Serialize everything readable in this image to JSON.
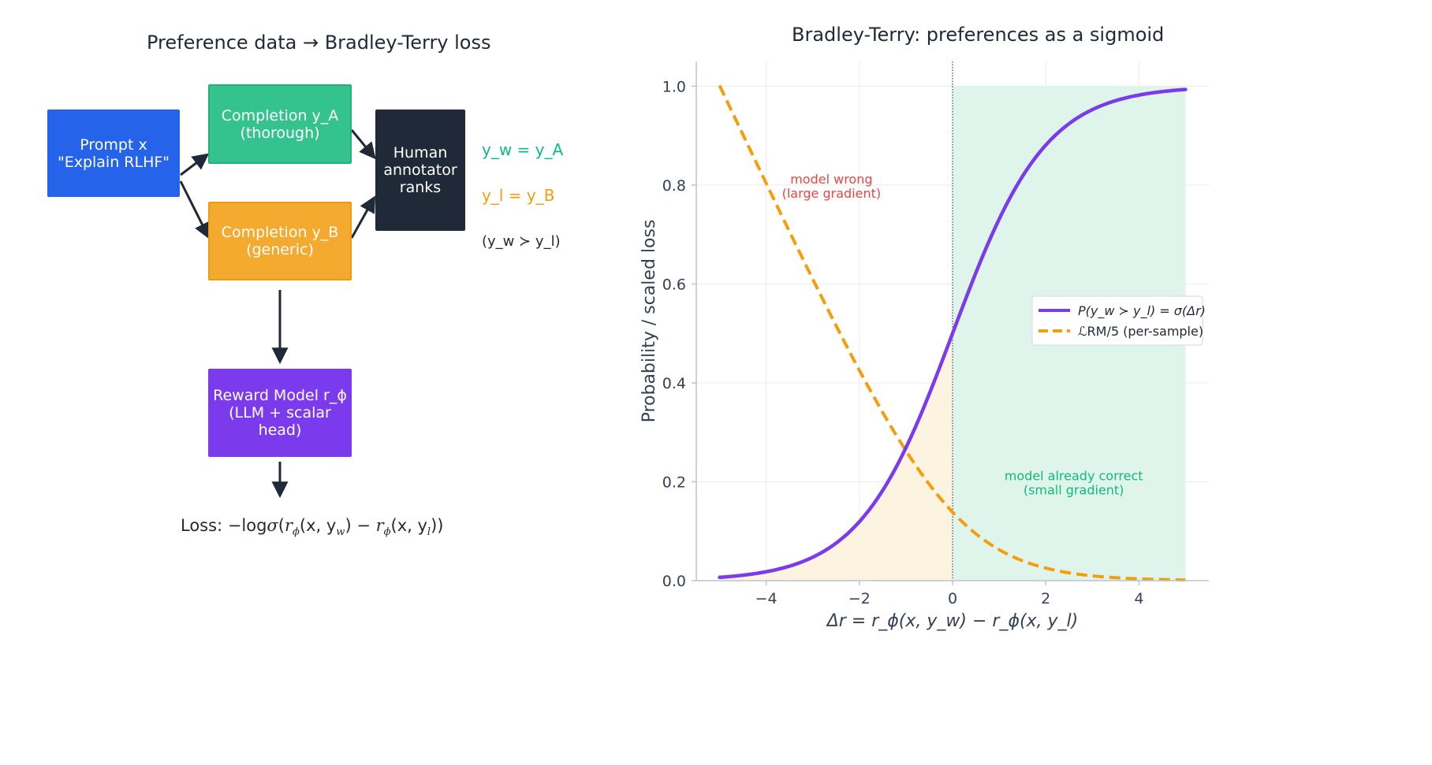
{
  "colors": {
    "prompt": "#2563eb",
    "completion_a": "#34c38f",
    "completion_b": "#f4aa2f",
    "annotator": "#1f2937",
    "reward_model": "#7c3aed",
    "sigmoid": "#7c3aed",
    "loss_curve": "#f59e0b",
    "wrong_text": "#ef4444",
    "correct_text": "#10b981"
  },
  "left_panel": {
    "title": "Preference data → Bradley-Terry loss",
    "prompt": {
      "line1": "Prompt x",
      "line2": "\"Explain RLHF\""
    },
    "completion_a": {
      "line1": "Completion y_A",
      "line2": "(thorough)"
    },
    "completion_b": {
      "line1": "Completion y_B",
      "line2": "(generic)"
    },
    "annotator": {
      "line1": "Human",
      "line2": "annotator",
      "line3": "ranks"
    },
    "yw_label": "y_w = y_A",
    "yl_label": "y_l = y_B",
    "order_label": "(y_w ≻ y_l)",
    "reward_model": {
      "line1": "Reward Model r_ϕ",
      "line2": "(LLM + scalar head)"
    },
    "loss": {
      "prefix": "Loss: ",
      "minus_log": "−log",
      "sigma": "σ",
      "open": "(",
      "r": "r",
      "phi": "ϕ",
      "args_w": "(x, y",
      "w": "w",
      "close_arg": ")",
      "minus": " − ",
      "args_l": "(x, y",
      "l": "l",
      "close": "))"
    }
  },
  "chart_data": {
    "type": "line",
    "title": "Bradley-Terry: preferences as a sigmoid",
    "xlabel": "Δr = r_ϕ(x, y_w) − r_ϕ(x, y_l)",
    "ylabel": "Probability / scaled loss",
    "xlim": [
      -5.5,
      5.5
    ],
    "ylim": [
      0.0,
      1.05
    ],
    "x_ticks": [
      -4,
      -2,
      0,
      2,
      4
    ],
    "x_tick_labels": [
      "−4",
      "−2",
      "0",
      "2",
      "4"
    ],
    "y_ticks": [
      0.0,
      0.2,
      0.4,
      0.6,
      0.8,
      1.0
    ],
    "y_tick_labels": [
      "0.0",
      "0.2",
      "0.4",
      "0.6",
      "0.8",
      "1.0"
    ],
    "grid": true,
    "legend_position": "center-right",
    "x_range": [
      -5,
      5
    ],
    "series": [
      {
        "name": "P(y_w ≻ y_l) = σ(Δr)",
        "style": "solid",
        "function": "sigmoid",
        "samples_x": [
          -5,
          -4,
          -2,
          -1,
          0,
          1,
          2,
          4,
          5
        ],
        "samples_y": [
          0.007,
          0.018,
          0.119,
          0.269,
          0.5,
          0.731,
          0.881,
          0.982,
          0.993
        ]
      },
      {
        "name": "ℒRM/5 (per-sample)",
        "style": "dashed",
        "function": "softplus_neg_over_5",
        "samples_x": [
          -5,
          -4,
          -2,
          -1,
          0,
          1,
          2,
          4,
          5
        ],
        "samples_y": [
          1.001,
          0.804,
          0.425,
          0.263,
          0.139,
          0.063,
          0.025,
          0.004,
          0.001
        ]
      }
    ],
    "shaded_regions": [
      {
        "x_from": -5,
        "x_to": 0,
        "under": "sigmoid",
        "color": "#fdf3e1"
      },
      {
        "x_from": 0,
        "x_to": 5,
        "under": "top",
        "color": "#dff5ec"
      }
    ],
    "vline_x": 0,
    "annotations": [
      {
        "text_line1": "model wrong",
        "text_line2": "(large gradient)",
        "x": -2.6,
        "y": 0.8,
        "color": "#ef4444"
      },
      {
        "text_line1": "model already correct",
        "text_line2": "(small gradient)",
        "x": 2.6,
        "y": 0.2,
        "color": "#10b981"
      }
    ],
    "legend": {
      "sigmoid_label": "P(y_w ≻ y_l) = σ(Δr)",
      "loss_label": "ℒRM/5 (per-sample)"
    }
  }
}
